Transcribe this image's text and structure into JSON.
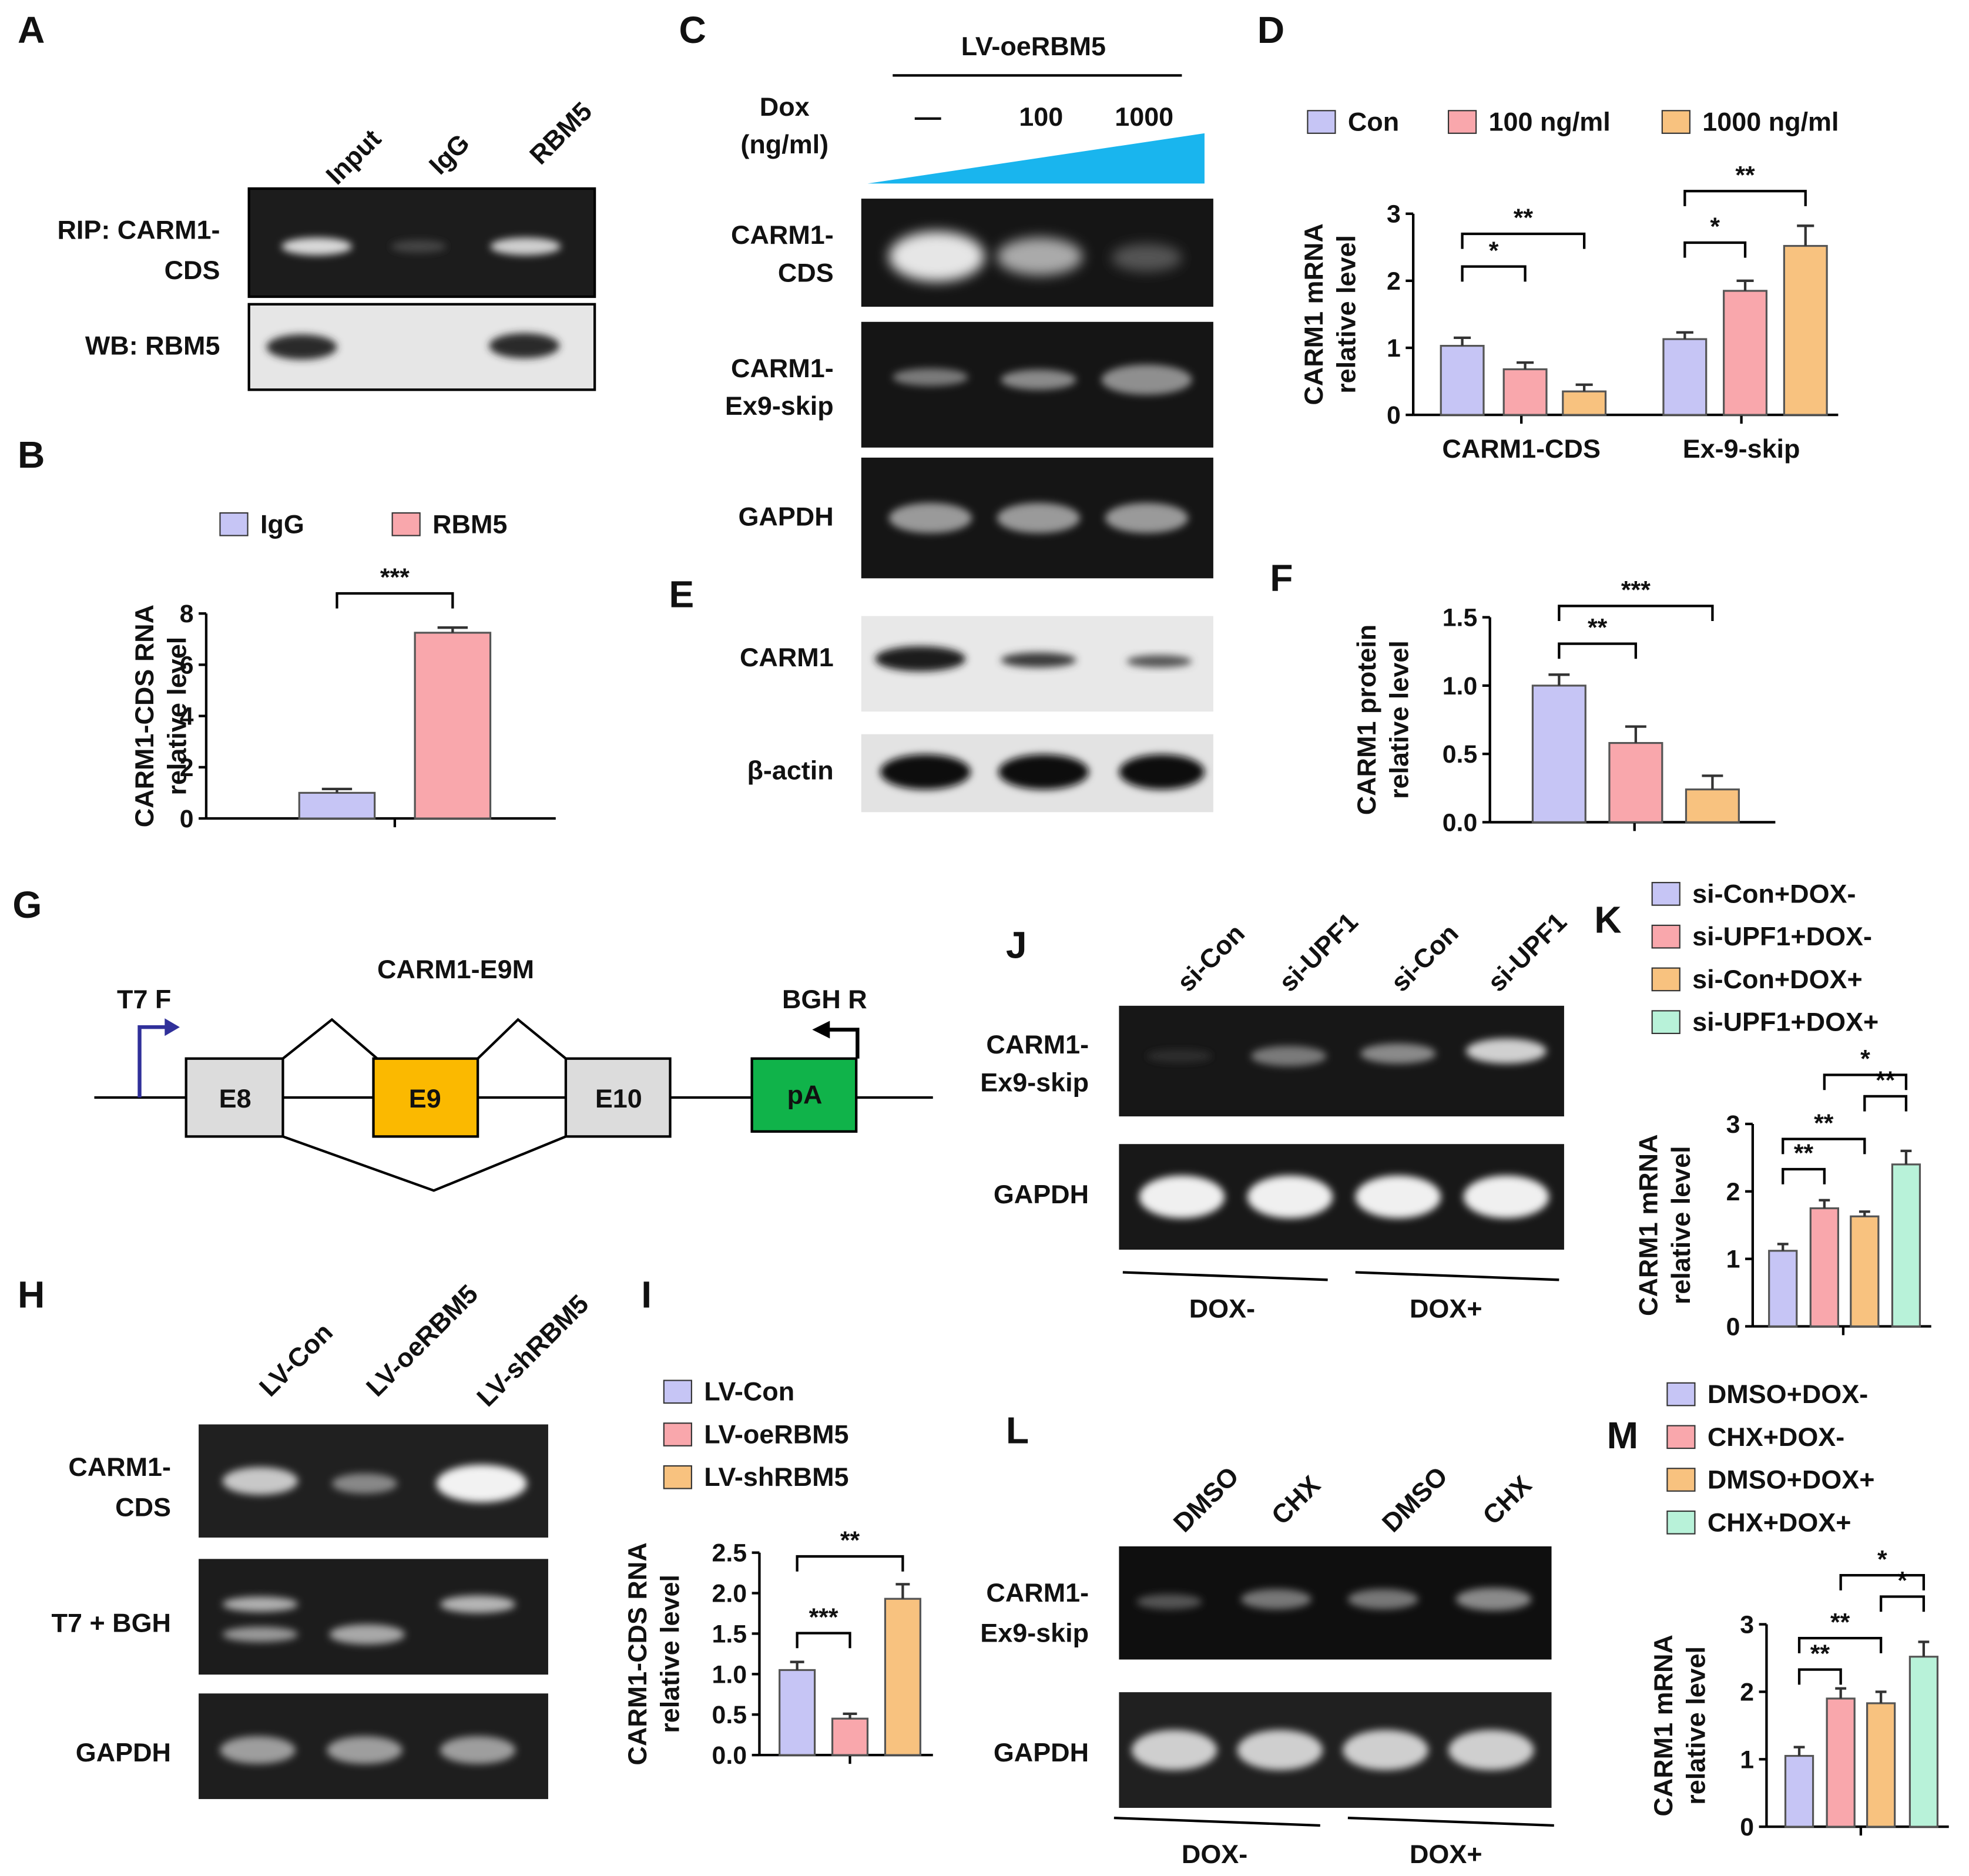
{
  "colors": {
    "purple": "#c6c5f5",
    "pink": "#f9a7ac",
    "orange": "#f8c27f",
    "teal": "#b8f2d9",
    "blue_ramp": "#19b5ee",
    "e9_orange": "#fbb900",
    "pa_green": "#10b34a",
    "exon_grey": "#dcdcdc",
    "arrow_blue": "#30309a"
  },
  "panels": {
    "A": "A",
    "B": "B",
    "C": "C",
    "D": "D",
    "E": "E",
    "F": "F",
    "G": "G",
    "H": "H",
    "I": "I",
    "J": "J",
    "K": "K",
    "L": "L",
    "M": "M"
  },
  "gels": {
    "A": {
      "lanes": [
        "Input",
        "IgG",
        "RBM5"
      ],
      "rows": [
        "RIP: CARM1-\nCDS",
        "WB: RBM5"
      ]
    },
    "C": {
      "header": "LV-oeRBM5",
      "dox_label": "Dox\n(ng/ml)",
      "doses": [
        "—",
        "100",
        "1000"
      ],
      "rows": [
        "CARM1-\nCDS",
        "CARM1-\nEx9-skip",
        "GAPDH"
      ]
    },
    "E": {
      "rows": [
        "CARM1",
        "β-actin"
      ]
    },
    "H": {
      "lanes": [
        "LV-Con",
        "LV-oeRBM5",
        "LV-shRBM5"
      ],
      "rows": [
        "CARM1-\nCDS",
        "T7 + BGH",
        "GAPDH"
      ]
    },
    "J": {
      "lanes": [
        "si-Con",
        "si-UPF1",
        "si-Con",
        "si-UPF1"
      ],
      "rows": [
        "CARM1-\nEx9-skip",
        "GAPDH"
      ],
      "groups": [
        "DOX-",
        "DOX+"
      ]
    },
    "L": {
      "lanes": [
        "DMSO",
        "CHX",
        "DMSO",
        "CHX"
      ],
      "rows": [
        "CARM1-\nEx9-skip",
        "GAPDH"
      ],
      "groups": [
        "DOX-",
        "DOX+"
      ]
    }
  },
  "diagram_G": {
    "title": "CARM1-E9M",
    "primer_f": "T7 F",
    "primer_r": "BGH R",
    "boxes": [
      "E8",
      "E9",
      "E10",
      "pA"
    ]
  },
  "chart_data": [
    {
      "panel": "B",
      "type": "bar",
      "ylabel": "CARM1-CDS RNA\nrelative level",
      "ylim": [
        0,
        8
      ],
      "yticks": [
        0,
        2,
        4,
        6,
        8
      ],
      "series": [
        {
          "name": "IgG",
          "values": [
            1.0
          ],
          "errors": [
            0.15
          ],
          "color": "#c6c5f5"
        },
        {
          "name": "RBM5",
          "values": [
            7.25
          ],
          "errors": [
            0.2
          ],
          "color": "#f9a7ac"
        }
      ],
      "significance": [
        {
          "from": 0,
          "to": 1,
          "label": "***"
        }
      ]
    },
    {
      "panel": "D",
      "type": "bar",
      "ylabel": "CARM1 mRNA\nrelative level",
      "ylim": [
        0,
        3
      ],
      "yticks": [
        0,
        1,
        2,
        3
      ],
      "categories": [
        "CARM1-CDS",
        "Ex-9-skip"
      ],
      "series": [
        {
          "name": "Con",
          "values": [
            1.03,
            1.13
          ],
          "errors": [
            0.12,
            0.1
          ],
          "color": "#c6c5f5"
        },
        {
          "name": "100 ng/ml",
          "values": [
            0.68,
            1.85
          ],
          "errors": [
            0.1,
            0.15
          ],
          "color": "#f9a7ac"
        },
        {
          "name": "1000 ng/ml",
          "values": [
            0.35,
            2.52
          ],
          "errors": [
            0.1,
            0.3
          ],
          "color": "#f8c27f"
        }
      ],
      "significance": [
        {
          "group": 0,
          "from": 0,
          "to": 1,
          "label": "*"
        },
        {
          "group": 0,
          "from": 0,
          "to": 2,
          "label": "**"
        },
        {
          "group": 1,
          "from": 0,
          "to": 1,
          "label": "*"
        },
        {
          "group": 1,
          "from": 0,
          "to": 2,
          "label": "**"
        }
      ]
    },
    {
      "panel": "F",
      "type": "bar",
      "ylabel": "CARM1 protein\nrelative level",
      "ylim": [
        0,
        1.5
      ],
      "yticks": [
        "0.0",
        "0.5",
        "1.0",
        "1.5"
      ],
      "series": [
        {
          "values": [
            1.0
          ],
          "errors": [
            0.08
          ],
          "color": "#c6c5f5"
        },
        {
          "values": [
            0.58
          ],
          "errors": [
            0.12
          ],
          "color": "#f9a7ac"
        },
        {
          "values": [
            0.24
          ],
          "errors": [
            0.1
          ],
          "color": "#f8c27f"
        }
      ],
      "significance": [
        {
          "from": 0,
          "to": 1,
          "label": "**"
        },
        {
          "from": 0,
          "to": 2,
          "label": "***"
        }
      ]
    },
    {
      "panel": "I",
      "type": "bar",
      "ylabel": "CARM1-CDS RNA\nrelative level",
      "ylim": [
        0,
        2.5
      ],
      "yticks": [
        "0.0",
        "0.5",
        "1.0",
        "1.5",
        "2.0",
        "2.5"
      ],
      "series": [
        {
          "name": "LV-Con",
          "values": [
            1.05
          ],
          "errors": [
            0.1
          ],
          "color": "#c6c5f5"
        },
        {
          "name": "LV-oeRBM5",
          "values": [
            0.45
          ],
          "errors": [
            0.06
          ],
          "color": "#f9a7ac"
        },
        {
          "name": "LV-shRBM5",
          "values": [
            1.93
          ],
          "errors": [
            0.18
          ],
          "color": "#f8c27f"
        }
      ],
      "significance": [
        {
          "from": 0,
          "to": 1,
          "label": "***"
        },
        {
          "from": 0,
          "to": 2,
          "label": "**"
        }
      ]
    },
    {
      "panel": "K",
      "type": "bar",
      "ylabel": "CARM1 mRNA\nrelative level",
      "ylim": [
        0,
        3
      ],
      "yticks": [
        0,
        1,
        2,
        3
      ],
      "series": [
        {
          "name": "si-Con+DOX-",
          "values": [
            1.12
          ],
          "errors": [
            0.1
          ],
          "color": "#c6c5f5"
        },
        {
          "name": "si-UPF1+DOX-",
          "values": [
            1.75
          ],
          "errors": [
            0.12
          ],
          "color": "#f9a7ac"
        },
        {
          "name": "si-Con+DOX+",
          "values": [
            1.63
          ],
          "errors": [
            0.07
          ],
          "color": "#f8c27f"
        },
        {
          "name": "si-UPF1+DOX+",
          "values": [
            2.4
          ],
          "errors": [
            0.2
          ],
          "color": "#b8f2d9"
        }
      ],
      "significance": [
        {
          "from": 0,
          "to": 1,
          "label": "**"
        },
        {
          "from": 0,
          "to": 2,
          "label": "**"
        },
        {
          "from": 2,
          "to": 3,
          "label": "**"
        },
        {
          "from": 1,
          "to": 3,
          "label": "*"
        }
      ]
    },
    {
      "panel": "M",
      "type": "bar",
      "ylabel": "CARM1 mRNA\nrelative level",
      "ylim": [
        0,
        3
      ],
      "yticks": [
        0,
        1,
        2,
        3
      ],
      "series": [
        {
          "name": "DMSO+DOX-",
          "values": [
            1.05
          ],
          "errors": [
            0.13
          ],
          "color": "#c6c5f5"
        },
        {
          "name": "CHX+DOX-",
          "values": [
            1.9
          ],
          "errors": [
            0.15
          ],
          "color": "#f9a7ac"
        },
        {
          "name": "DMSO+DOX+",
          "values": [
            1.83
          ],
          "errors": [
            0.17
          ],
          "color": "#f8c27f"
        },
        {
          "name": "CHX+DOX+",
          "values": [
            2.52
          ],
          "errors": [
            0.22
          ],
          "color": "#b8f2d9"
        }
      ],
      "significance": [
        {
          "from": 0,
          "to": 1,
          "label": "**"
        },
        {
          "from": 0,
          "to": 2,
          "label": "**"
        },
        {
          "from": 2,
          "to": 3,
          "label": "*"
        },
        {
          "from": 1,
          "to": 3,
          "label": "*"
        }
      ]
    }
  ]
}
